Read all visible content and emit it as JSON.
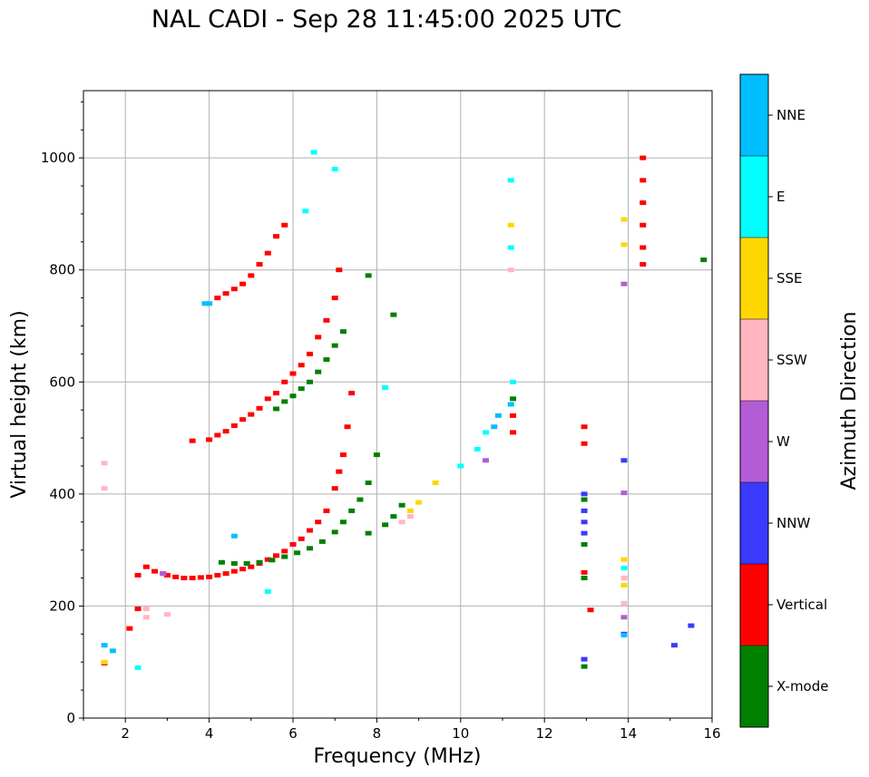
{
  "chart_data": {
    "type": "scatter",
    "title": "NAL CADI - Sep 28 11:45:00 2025 UTC",
    "xlabel": "Frequency (MHz)",
    "ylabel": "Virtual height (km)",
    "xlim": [
      1,
      16
    ],
    "ylim": [
      0,
      1120
    ],
    "xticks": [
      2,
      4,
      6,
      8,
      10,
      12,
      14,
      16
    ],
    "yticks": [
      0,
      200,
      400,
      600,
      800,
      1000
    ],
    "grid": true,
    "colorbar": {
      "label": "Azimuth Direction",
      "categories": [
        "X-mode",
        "Vertical",
        "NNW",
        "W",
        "SSW",
        "SSE",
        "E",
        "NNE"
      ],
      "colors": [
        "#008000",
        "#ff0000",
        "#3a3aff",
        "#b35cd6",
        "#ffb6c1",
        "#ffd700",
        "#00ffff",
        "#00bfff"
      ]
    },
    "series": [
      {
        "name": "Vertical",
        "color": "#ff0000",
        "points": [
          [
            2.3,
            255
          ],
          [
            2.5,
            270
          ],
          [
            2.7,
            262
          ],
          [
            2.9,
            258
          ],
          [
            3.0,
            255
          ],
          [
            3.2,
            252
          ],
          [
            3.4,
            250
          ],
          [
            3.6,
            250
          ],
          [
            3.8,
            251
          ],
          [
            4.0,
            252
          ],
          [
            4.2,
            255
          ],
          [
            4.4,
            258
          ],
          [
            4.6,
            262
          ],
          [
            4.8,
            266
          ],
          [
            5.0,
            270
          ],
          [
            5.2,
            276
          ],
          [
            5.4,
            283
          ],
          [
            5.6,
            290
          ],
          [
            5.8,
            298
          ],
          [
            6.0,
            310
          ],
          [
            6.2,
            320
          ],
          [
            6.4,
            335
          ],
          [
            6.6,
            350
          ],
          [
            6.8,
            370
          ],
          [
            7.0,
            410
          ],
          [
            7.1,
            440
          ],
          [
            7.2,
            470
          ],
          [
            7.3,
            520
          ],
          [
            7.4,
            580
          ],
          [
            3.6,
            495
          ],
          [
            4.0,
            497
          ],
          [
            4.2,
            505
          ],
          [
            4.4,
            512
          ],
          [
            4.6,
            522
          ],
          [
            4.8,
            533
          ],
          [
            5.0,
            542
          ],
          [
            5.2,
            553
          ],
          [
            5.4,
            570
          ],
          [
            5.6,
            580
          ],
          [
            5.8,
            600
          ],
          [
            6.0,
            615
          ],
          [
            6.2,
            630
          ],
          [
            6.4,
            650
          ],
          [
            6.6,
            680
          ],
          [
            6.8,
            710
          ],
          [
            7.0,
            750
          ],
          [
            7.1,
            800
          ],
          [
            4.2,
            750
          ],
          [
            4.4,
            758
          ],
          [
            4.6,
            766
          ],
          [
            4.8,
            775
          ],
          [
            5.0,
            790
          ],
          [
            5.2,
            810
          ],
          [
            5.4,
            830
          ],
          [
            5.6,
            860
          ],
          [
            5.8,
            880
          ],
          [
            14.35,
            1000
          ],
          [
            14.35,
            960
          ],
          [
            14.35,
            920
          ],
          [
            14.35,
            880
          ],
          [
            14.35,
            840
          ],
          [
            14.35,
            810
          ],
          [
            12.95,
            520
          ],
          [
            12.95,
            490
          ],
          [
            12.95,
            260
          ],
          [
            13.1,
            193
          ],
          [
            11.25,
            540
          ],
          [
            11.25,
            510
          ],
          [
            1.5,
            98
          ],
          [
            2.1,
            160
          ],
          [
            2.3,
            195
          ]
        ]
      },
      {
        "name": "X-mode",
        "color": "#008000",
        "points": [
          [
            4.3,
            278
          ],
          [
            4.6,
            276
          ],
          [
            4.9,
            276
          ],
          [
            5.2,
            278
          ],
          [
            5.5,
            282
          ],
          [
            5.8,
            288
          ],
          [
            6.1,
            295
          ],
          [
            6.4,
            303
          ],
          [
            6.7,
            315
          ],
          [
            7.0,
            332
          ],
          [
            7.2,
            350
          ],
          [
            7.4,
            370
          ],
          [
            7.6,
            390
          ],
          [
            7.8,
            420
          ],
          [
            8.0,
            470
          ],
          [
            5.6,
            552
          ],
          [
            5.8,
            565
          ],
          [
            6.0,
            575
          ],
          [
            6.2,
            588
          ],
          [
            6.4,
            600
          ],
          [
            6.6,
            618
          ],
          [
            6.8,
            640
          ],
          [
            7.0,
            665
          ],
          [
            7.2,
            690
          ],
          [
            7.8,
            790
          ],
          [
            7.8,
            330
          ],
          [
            8.2,
            345
          ],
          [
            8.4,
            360
          ],
          [
            8.6,
            380
          ],
          [
            12.95,
            310
          ],
          [
            12.95,
            250
          ],
          [
            12.95,
            92
          ],
          [
            12.95,
            390
          ],
          [
            11.25,
            570
          ],
          [
            8.4,
            720
          ],
          [
            15.8,
            818
          ]
        ]
      },
      {
        "name": "NNW",
        "color": "#3a3aff",
        "points": [
          [
            12.95,
            400
          ],
          [
            12.95,
            370
          ],
          [
            12.95,
            350
          ],
          [
            12.95,
            330
          ],
          [
            12.95,
            105
          ],
          [
            13.9,
            460
          ],
          [
            15.1,
            130
          ],
          [
            15.5,
            165
          ],
          [
            13.9,
            150
          ]
        ]
      },
      {
        "name": "W",
        "color": "#b35cd6",
        "points": [
          [
            13.9,
            775
          ],
          [
            13.9,
            402
          ],
          [
            13.9,
            180
          ],
          [
            2.9,
            258
          ],
          [
            10.6,
            460
          ]
        ]
      },
      {
        "name": "SSW",
        "color": "#ffb6c1",
        "points": [
          [
            1.5,
            455
          ],
          [
            1.5,
            410
          ],
          [
            2.5,
            180
          ],
          [
            2.5,
            195
          ],
          [
            3.0,
            185
          ],
          [
            8.8,
            360
          ],
          [
            8.6,
            350
          ],
          [
            11.2,
            800
          ],
          [
            13.9,
            250
          ],
          [
            13.9,
            205
          ]
        ]
      },
      {
        "name": "SSE",
        "color": "#ffd700",
        "points": [
          [
            8.8,
            370
          ],
          [
            9.0,
            385
          ],
          [
            9.4,
            420
          ],
          [
            13.9,
            890
          ],
          [
            13.9,
            845
          ],
          [
            13.9,
            283
          ],
          [
            13.9,
            237
          ],
          [
            11.2,
            880
          ],
          [
            1.5,
            100
          ]
        ]
      },
      {
        "name": "E",
        "color": "#00ffff",
        "points": [
          [
            6.5,
            1010
          ],
          [
            7.0,
            980
          ],
          [
            6.3,
            905
          ],
          [
            10.0,
            450
          ],
          [
            10.4,
            480
          ],
          [
            10.6,
            510
          ],
          [
            11.2,
            960
          ],
          [
            11.2,
            840
          ],
          [
            11.25,
            600
          ],
          [
            8.2,
            590
          ],
          [
            13.9,
            268
          ],
          [
            5.4,
            226
          ],
          [
            2.3,
            90
          ]
        ]
      },
      {
        "name": "NNE",
        "color": "#00bfff",
        "points": [
          [
            4.0,
            740
          ],
          [
            3.9,
            740
          ],
          [
            4.6,
            325
          ],
          [
            1.5,
            130
          ],
          [
            1.7,
            120
          ],
          [
            10.8,
            520
          ],
          [
            10.9,
            540
          ],
          [
            11.2,
            560
          ],
          [
            13.9,
            148
          ]
        ]
      }
    ]
  }
}
